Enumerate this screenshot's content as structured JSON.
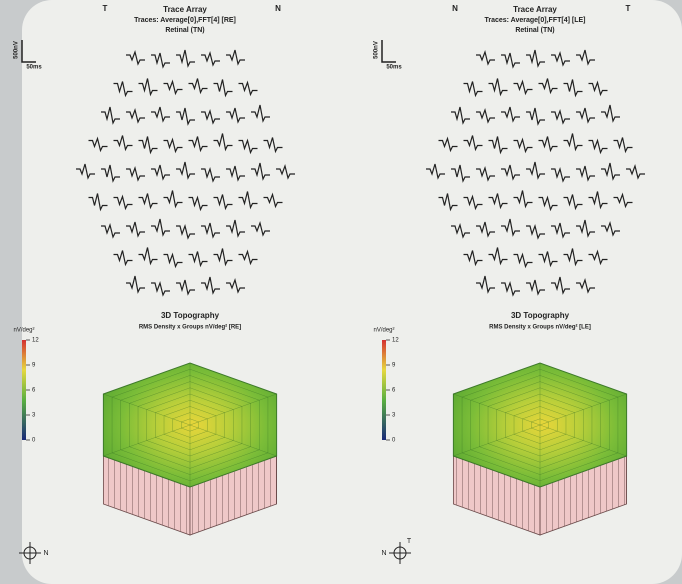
{
  "panels": [
    {
      "side_left": "T",
      "side_right": "N",
      "trace_title": "Trace Array",
      "trace_subtitle": "Traces: Average[0],FFT[4] [RE]",
      "trace_view": "Retinal (TN)",
      "amp_scale": "500nV",
      "time_scale": "50ms",
      "topo_title": "3D Topography",
      "topo_subtitle": "RMS Density x Groups nV/deg² [RE]",
      "colorbar_unit": "nV/deg²",
      "colorbar_ticks": [
        "12",
        "9",
        "6",
        "3",
        "0"
      ],
      "compass": [
        "N"
      ]
    },
    {
      "side_left": "N",
      "side_right": "T",
      "trace_title": "Trace Array",
      "trace_subtitle": "Traces: Average[0],FFT[4] [LE]",
      "trace_view": "Retinal (TN)",
      "amp_scale": "500nV",
      "time_scale": "50ms",
      "topo_title": "3D Topography",
      "topo_subtitle": "RMS Density x Groups nV/deg² [LE]",
      "colorbar_unit": "nV/deg²",
      "colorbar_ticks": [
        "12",
        "9",
        "6",
        "3",
        "0"
      ],
      "compass": [
        "N",
        "T"
      ]
    }
  ]
}
